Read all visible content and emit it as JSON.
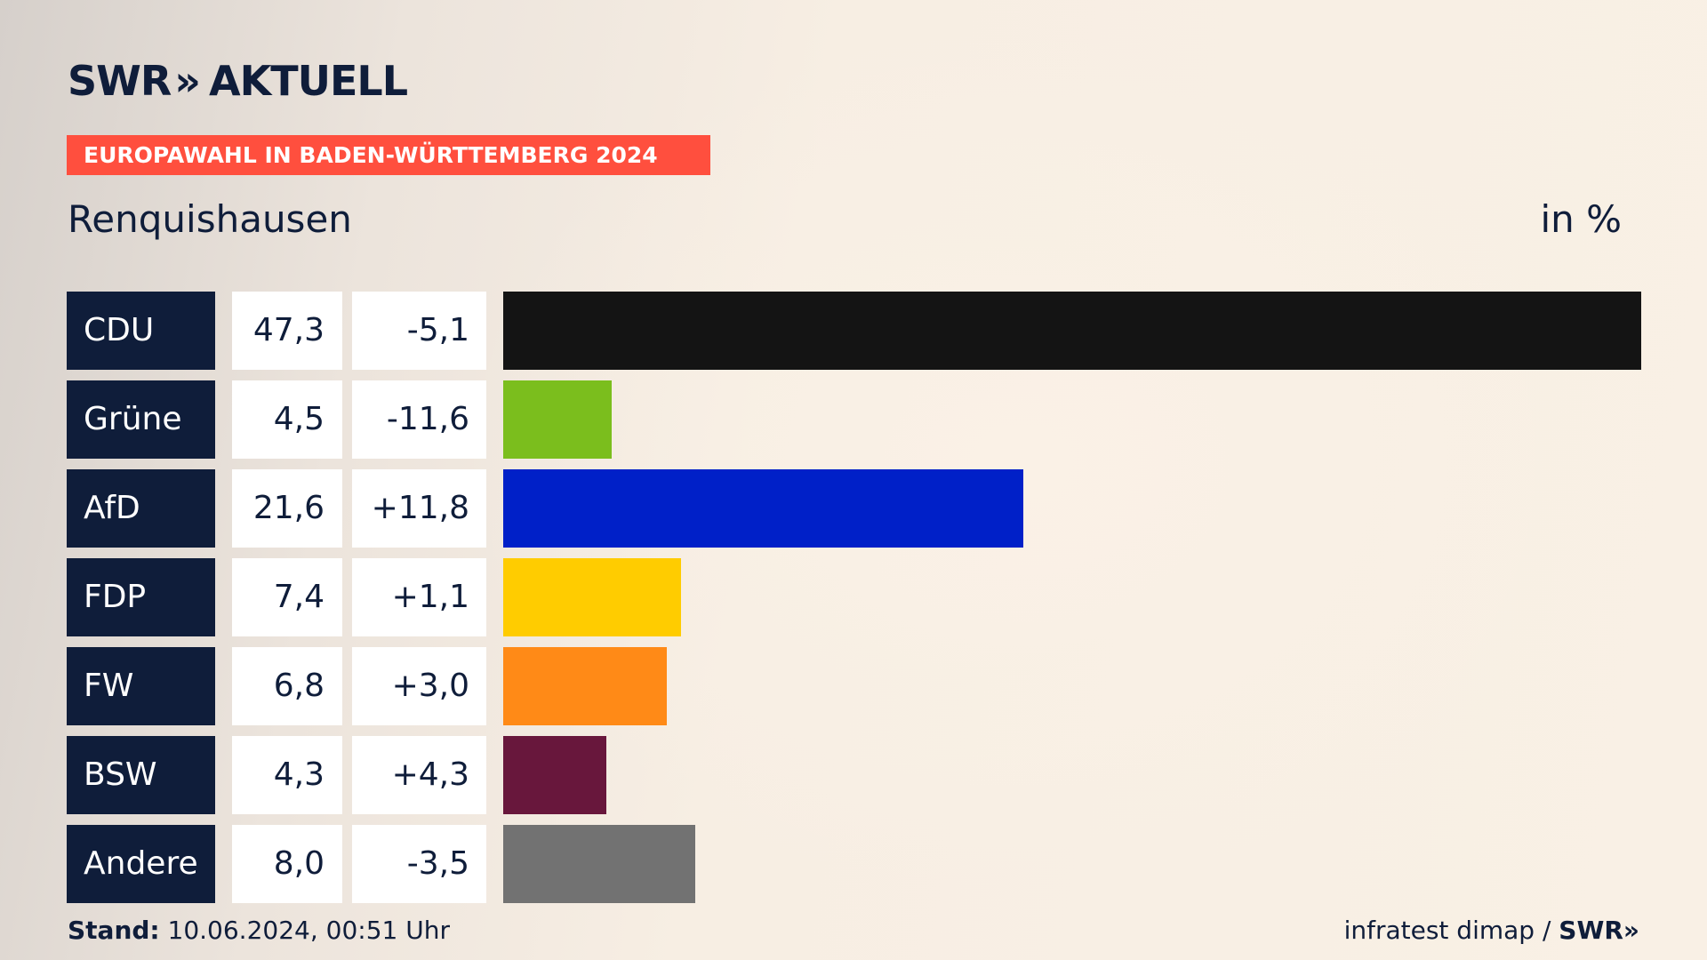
{
  "header": {
    "logo_text": "SWR",
    "logo_chevrons": "»",
    "logo_suffix": "AKTUELL",
    "banner": "EUROPAWAHL IN BADEN-WÜRTTEMBERG 2024",
    "location": "Renquishausen",
    "unit": "in %"
  },
  "footer": {
    "stand_label": "Stand:",
    "stand_value": " 10.06.2024, 00:51 Uhr",
    "source": "infratest dimap / ",
    "brand": "SWR»"
  },
  "chart_data": {
    "type": "bar",
    "orientation": "horizontal",
    "categories": [
      "CDU",
      "Grüne",
      "AfD",
      "FDP",
      "FW",
      "BSW",
      "Andere"
    ],
    "values": [
      47.3,
      4.5,
      21.6,
      7.4,
      6.8,
      4.3,
      8.0
    ],
    "value_labels": [
      "47,3",
      "4,5",
      "21,6",
      "7,4",
      "6,8",
      "4,3",
      "8,0"
    ],
    "diff_labels": [
      "-5,1",
      "-11,6",
      "+11,8",
      "+1,1",
      "+3,0",
      "+4,3",
      "-3,5"
    ],
    "colors": [
      "#141414",
      "#7bbe1d",
      "#0020c8",
      "#ffcc00",
      "#ff8a17",
      "#68173c",
      "#727272"
    ],
    "xlim": [
      0,
      47.3
    ]
  }
}
